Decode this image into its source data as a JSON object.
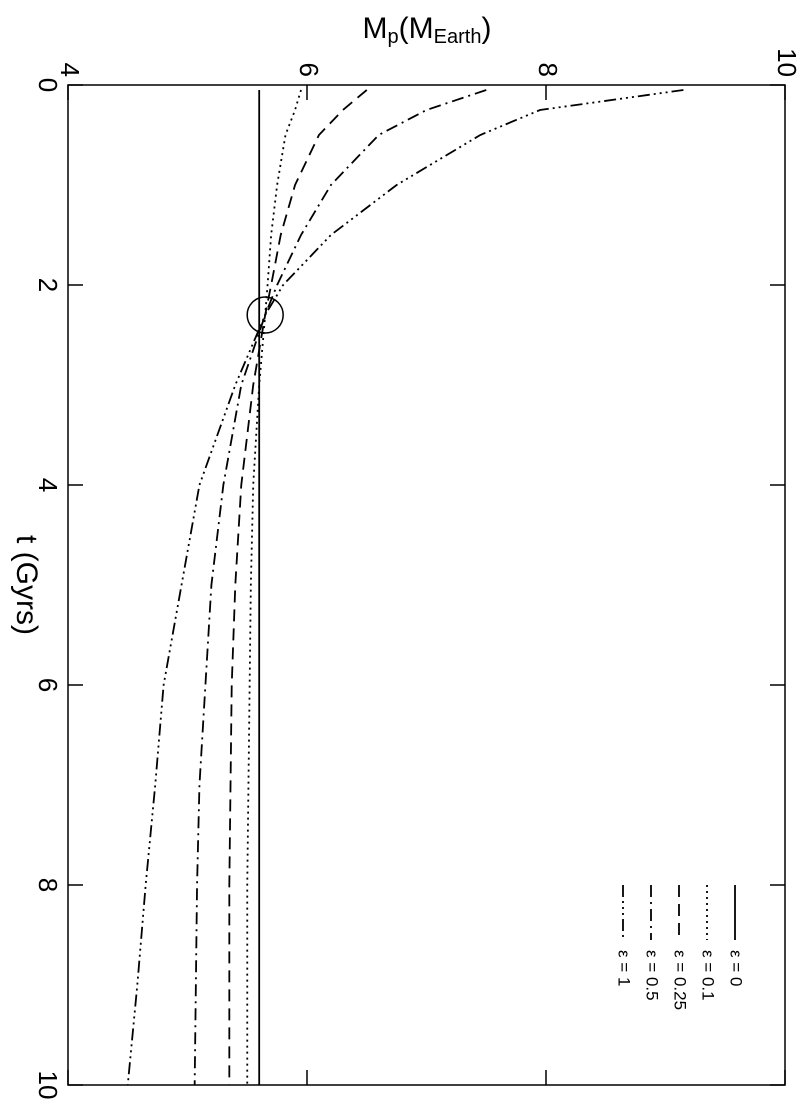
{
  "chart_data": {
    "type": "line",
    "x_label": "t (Gyrs)",
    "y_label": [
      {
        "text": "M"
      },
      {
        "text": "p",
        "sub": true
      },
      {
        "text": "(M"
      },
      {
        "text": "Earth",
        "sub": true
      },
      {
        "text": ")"
      }
    ],
    "x": [
      0.05,
      0.25,
      0.5,
      1,
      1.5,
      2,
      2.3,
      3,
      4,
      5,
      6,
      7,
      8,
      9,
      10
    ],
    "xlim": [
      0,
      10
    ],
    "xticks": [
      0,
      2,
      4,
      6,
      8,
      10
    ],
    "ylim": [
      4,
      10
    ],
    "yticks": [
      4,
      6,
      8,
      10
    ],
    "rotated": true,
    "legend": "lower-right",
    "series": [
      {
        "name": "ε = 0",
        "color": "#000000",
        "dash": "none",
        "values": [
          5.6,
          5.6,
          5.6,
          5.6,
          5.6,
          5.6,
          5.6,
          5.6,
          5.6,
          5.6,
          5.6,
          5.6,
          5.6,
          5.6,
          5.6
        ]
      },
      {
        "name": "ε = 0.1",
        "color": "#000000",
        "dash": "2,4",
        "values": [
          5.95,
          5.9,
          5.82,
          5.75,
          5.7,
          5.67,
          5.65,
          5.6,
          5.55,
          5.53,
          5.52,
          5.51,
          5.5,
          5.5,
          5.5
        ]
      },
      {
        "name": "ε = 0.25",
        "color": "#000000",
        "dash": "12,7",
        "values": [
          6.5,
          6.3,
          6.1,
          5.9,
          5.78,
          5.7,
          5.65,
          5.55,
          5.45,
          5.4,
          5.37,
          5.36,
          5.35,
          5.35,
          5.35
        ]
      },
      {
        "name": "ε = 0.5",
        "color": "#000000",
        "dash": "12,5,2,5",
        "values": [
          7.5,
          7.0,
          6.6,
          6.2,
          5.95,
          5.75,
          5.65,
          5.45,
          5.3,
          5.2,
          5.15,
          5.1,
          5.08,
          5.07,
          5.06
        ]
      },
      {
        "name": "ε = 1",
        "color": "#000000",
        "dash": "12,4,2,4,2,4,2,4",
        "values": [
          9.15,
          7.95,
          7.45,
          6.75,
          6.2,
          5.8,
          5.65,
          5.4,
          5.1,
          4.95,
          4.8,
          4.73,
          4.65,
          4.58,
          4.5
        ]
      }
    ],
    "marker": {
      "x": 2.3,
      "y": 5.65
    }
  }
}
